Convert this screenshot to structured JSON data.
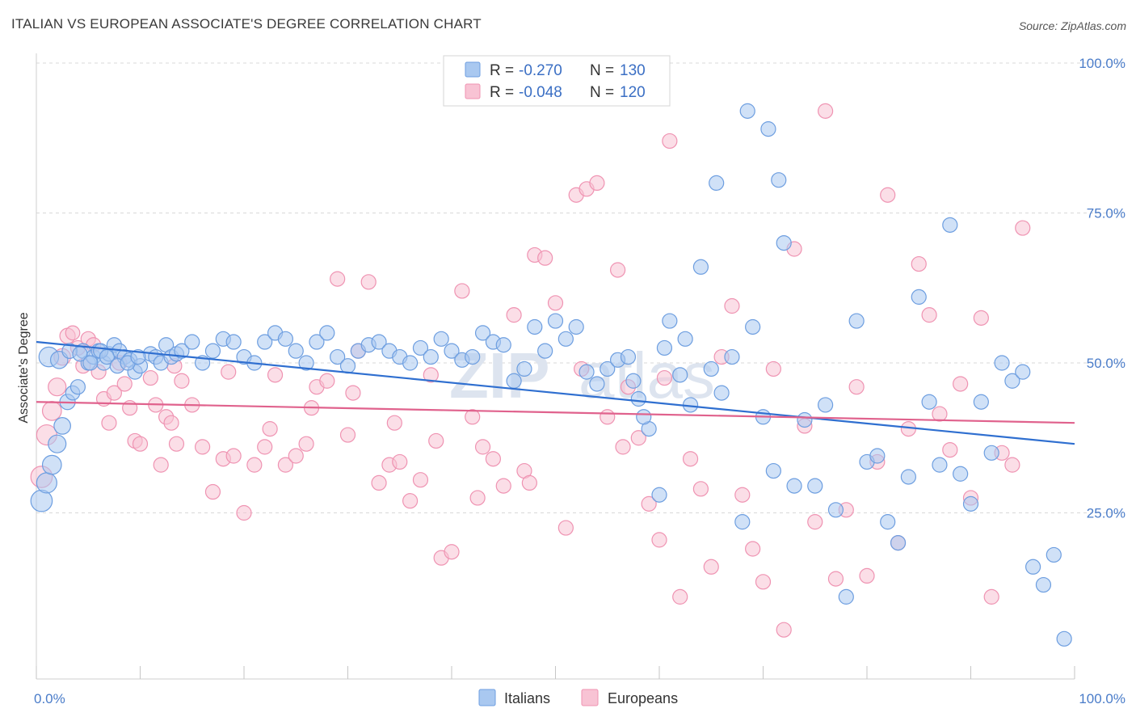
{
  "title": "ITALIAN VS EUROPEAN ASSOCIATE'S DEGREE CORRELATION CHART",
  "source": "Source: ZipAtlas.com",
  "watermark": {
    "part1": "ZIP",
    "part2": "atlas"
  },
  "legend": {
    "rows": [
      {
        "r_label": "R =",
        "r_value": "-0.270",
        "n_label": "N =",
        "n_value": "130"
      },
      {
        "r_label": "R =",
        "r_value": "-0.048",
        "n_label": "N =",
        "n_value": "120"
      }
    ]
  },
  "bottom_legend": {
    "items": [
      "Italians",
      "Europeans"
    ]
  },
  "colors": {
    "italians_fill": "#a9c8f0",
    "italians_stroke": "#6d9ee0",
    "italians_line": "#2f6fd0",
    "europeans_fill": "#f8c3d4",
    "europeans_stroke": "#ef93b2",
    "europeans_line": "#e0628d",
    "tick_label": "#4a7cc9",
    "grid": "#d8d8d8"
  },
  "chart_data": {
    "type": "scatter",
    "title": "ITALIAN VS EUROPEAN ASSOCIATE'S DEGREE CORRELATION CHART",
    "xlabel": "",
    "ylabel": "Associate's Degree",
    "xlim": [
      0,
      100
    ],
    "ylim": [
      0,
      100
    ],
    "x_tick_labels": [
      "0.0%",
      "100.0%"
    ],
    "y_ticks": [
      {
        "value": 25,
        "label": "25.0%"
      },
      {
        "value": 50,
        "label": "50.0%"
      },
      {
        "value": 75,
        "label": "75.0%"
      },
      {
        "value": 100,
        "label": "100.0%"
      }
    ],
    "grid": "horizontal-dashed",
    "legend_position": "top-center",
    "series": [
      {
        "name": "Italians",
        "r": -0.27,
        "n": 130,
        "trend": {
          "x": [
            0,
            100
          ],
          "y": [
            53.5,
            36.5
          ]
        },
        "points": [
          [
            0.5,
            27
          ],
          [
            1,
            30
          ],
          [
            1.5,
            33
          ],
          [
            2,
            36.5
          ],
          [
            2.5,
            39.5
          ],
          [
            3,
            43.5
          ],
          [
            3.5,
            45
          ],
          [
            4,
            46
          ],
          [
            4.5,
            52
          ],
          [
            5,
            50
          ],
          [
            5.5,
            51
          ],
          [
            6,
            52
          ],
          [
            6.5,
            50
          ],
          [
            7,
            51.5
          ],
          [
            7.5,
            53
          ],
          [
            8,
            52
          ],
          [
            8.5,
            51
          ],
          [
            9,
            50.5
          ],
          [
            9.5,
            48.5
          ],
          [
            10,
            49.5
          ],
          [
            11,
            51.5
          ],
          [
            11.5,
            51
          ],
          [
            12,
            50
          ],
          [
            12.5,
            53
          ],
          [
            13,
            51
          ],
          [
            13.5,
            51.5
          ],
          [
            14,
            52
          ],
          [
            15,
            53.5
          ],
          [
            16,
            50
          ],
          [
            17,
            52
          ],
          [
            18,
            54
          ],
          [
            19,
            53.5
          ],
          [
            20,
            51
          ],
          [
            21,
            50
          ],
          [
            22,
            53.5
          ],
          [
            23,
            55
          ],
          [
            24,
            54
          ],
          [
            25,
            52
          ],
          [
            26,
            50
          ],
          [
            27,
            53.5
          ],
          [
            28,
            55
          ],
          [
            29,
            51
          ],
          [
            30,
            49.5
          ],
          [
            31,
            52
          ],
          [
            32,
            53
          ],
          [
            33,
            53.5
          ],
          [
            34,
            52
          ],
          [
            35,
            51
          ],
          [
            36,
            50
          ],
          [
            37,
            52.5
          ],
          [
            38,
            51
          ],
          [
            39,
            54
          ],
          [
            40,
            52
          ],
          [
            41,
            50.5
          ],
          [
            42,
            51
          ],
          [
            43,
            55
          ],
          [
            44,
            53.5
          ],
          [
            45,
            53
          ],
          [
            46,
            47
          ],
          [
            47,
            49
          ],
          [
            48,
            56
          ],
          [
            49,
            52
          ],
          [
            50,
            57
          ],
          [
            51,
            54
          ],
          [
            52,
            56
          ],
          [
            53,
            48.5
          ],
          [
            54,
            46.5
          ],
          [
            55,
            49
          ],
          [
            56,
            50.5
          ],
          [
            57,
            51
          ],
          [
            58,
            44
          ],
          [
            59,
            39
          ],
          [
            60,
            28
          ],
          [
            61,
            57
          ],
          [
            62,
            48
          ],
          [
            63,
            43
          ],
          [
            64,
            66
          ],
          [
            65,
            49
          ],
          [
            66,
            45
          ],
          [
            67,
            51
          ],
          [
            68,
            23.5
          ],
          [
            69,
            56
          ],
          [
            70,
            41
          ],
          [
            71,
            32
          ],
          [
            72,
            70
          ],
          [
            73,
            29.5
          ],
          [
            74,
            40.5
          ],
          [
            75,
            29.5
          ],
          [
            76,
            43
          ],
          [
            77,
            25.5
          ],
          [
            78,
            11
          ],
          [
            79,
            57
          ],
          [
            80,
            33.5
          ],
          [
            81,
            34.5
          ],
          [
            82,
            23.5
          ],
          [
            83,
            20
          ],
          [
            84,
            31
          ],
          [
            85,
            61
          ],
          [
            86,
            43.5
          ],
          [
            87,
            33
          ],
          [
            88,
            73
          ],
          [
            89,
            31.5
          ],
          [
            90,
            26.5
          ],
          [
            91,
            43.5
          ],
          [
            92,
            35
          ],
          [
            93,
            50
          ],
          [
            94,
            47
          ],
          [
            95,
            48.5
          ],
          [
            96,
            16
          ],
          [
            97,
            13
          ],
          [
            98,
            18
          ],
          [
            99,
            4
          ],
          [
            57.5,
            47
          ],
          [
            58.5,
            41
          ],
          [
            60.5,
            52.5
          ],
          [
            62.5,
            54
          ],
          [
            65.5,
            80
          ],
          [
            68.5,
            92
          ],
          [
            70.5,
            89
          ],
          [
            71.5,
            80.5
          ],
          [
            1.2,
            51
          ],
          [
            2.2,
            50.5
          ],
          [
            3.2,
            52
          ],
          [
            4.2,
            51.5
          ],
          [
            5.2,
            50
          ],
          [
            6.2,
            52
          ],
          [
            6.8,
            51
          ],
          [
            7.8,
            49.5
          ],
          [
            8.8,
            50
          ],
          [
            9.8,
            51
          ]
        ]
      },
      {
        "name": "Europeans",
        "r": -0.048,
        "n": 120,
        "trend": {
          "x": [
            0,
            100
          ],
          "y": [
            43.5,
            40
          ]
        },
        "points": [
          [
            0.5,
            31
          ],
          [
            1,
            38
          ],
          [
            1.5,
            42
          ],
          [
            2,
            46
          ],
          [
            2.5,
            51
          ],
          [
            3,
            54.5
          ],
          [
            3.5,
            55
          ],
          [
            4,
            52.5
          ],
          [
            4.5,
            49.5
          ],
          [
            5,
            54
          ],
          [
            5.5,
            53
          ],
          [
            6,
            48.5
          ],
          [
            6.5,
            44
          ],
          [
            7,
            40
          ],
          [
            7.5,
            45
          ],
          [
            8,
            50
          ],
          [
            8.5,
            46.5
          ],
          [
            9,
            42.5
          ],
          [
            9.5,
            37
          ],
          [
            10,
            36.5
          ],
          [
            11,
            47.5
          ],
          [
            11.5,
            43
          ],
          [
            12,
            33
          ],
          [
            12.5,
            41
          ],
          [
            13,
            40
          ],
          [
            13.5,
            36.5
          ],
          [
            14,
            47
          ],
          [
            15,
            43
          ],
          [
            16,
            36
          ],
          [
            17,
            28.5
          ],
          [
            18,
            34
          ],
          [
            19,
            34.5
          ],
          [
            20,
            25
          ],
          [
            21,
            33
          ],
          [
            22,
            36
          ],
          [
            23,
            48
          ],
          [
            24,
            33
          ],
          [
            25,
            34.5
          ],
          [
            26,
            36.5
          ],
          [
            27,
            46
          ],
          [
            28,
            47
          ],
          [
            29,
            64
          ],
          [
            30,
            38
          ],
          [
            31,
            52
          ],
          [
            32,
            63.5
          ],
          [
            33,
            30
          ],
          [
            34,
            33
          ],
          [
            35,
            33.5
          ],
          [
            36,
            27
          ],
          [
            37,
            30.5
          ],
          [
            38,
            48
          ],
          [
            39,
            17.5
          ],
          [
            40,
            18.5
          ],
          [
            41,
            62
          ],
          [
            42,
            41
          ],
          [
            43,
            36
          ],
          [
            44,
            34
          ],
          [
            45,
            29.5
          ],
          [
            46,
            58
          ],
          [
            47,
            32
          ],
          [
            48,
            68
          ],
          [
            49,
            67.5
          ],
          [
            50,
            60
          ],
          [
            51,
            22.5
          ],
          [
            52,
            78
          ],
          [
            53,
            79
          ],
          [
            54,
            80
          ],
          [
            55,
            41
          ],
          [
            56,
            65.5
          ],
          [
            57,
            46
          ],
          [
            58,
            37.5
          ],
          [
            59,
            26.5
          ],
          [
            60,
            20.5
          ],
          [
            61,
            87
          ],
          [
            62,
            11
          ],
          [
            63,
            34
          ],
          [
            64,
            29
          ],
          [
            65,
            16
          ],
          [
            66,
            51
          ],
          [
            67,
            59.5
          ],
          [
            68,
            28
          ],
          [
            69,
            19
          ],
          [
            70,
            13.5
          ],
          [
            71,
            49
          ],
          [
            72,
            5.5
          ],
          [
            73,
            69
          ],
          [
            74,
            39.5
          ],
          [
            75,
            23.5
          ],
          [
            76,
            92
          ],
          [
            77,
            14
          ],
          [
            78,
            25.5
          ],
          [
            79,
            46
          ],
          [
            80,
            14.5
          ],
          [
            81,
            33.5
          ],
          [
            82,
            78
          ],
          [
            83,
            20
          ],
          [
            84,
            39
          ],
          [
            85,
            66.5
          ],
          [
            86,
            58
          ],
          [
            87,
            41.5
          ],
          [
            88,
            35.5
          ],
          [
            89,
            46.5
          ],
          [
            90,
            27.5
          ],
          [
            91,
            57.5
          ],
          [
            92,
            11
          ],
          [
            93,
            35
          ],
          [
            94,
            33
          ],
          [
            95,
            72.5
          ],
          [
            13.3,
            49.5
          ],
          [
            18.5,
            48.5
          ],
          [
            22.5,
            39
          ],
          [
            26.5,
            42.5
          ],
          [
            30.5,
            45
          ],
          [
            34.5,
            40
          ],
          [
            38.5,
            37
          ],
          [
            42.5,
            27.5
          ],
          [
            47.5,
            30
          ],
          [
            52.5,
            49
          ],
          [
            56.5,
            36
          ],
          [
            60.5,
            47.5
          ]
        ]
      }
    ]
  }
}
